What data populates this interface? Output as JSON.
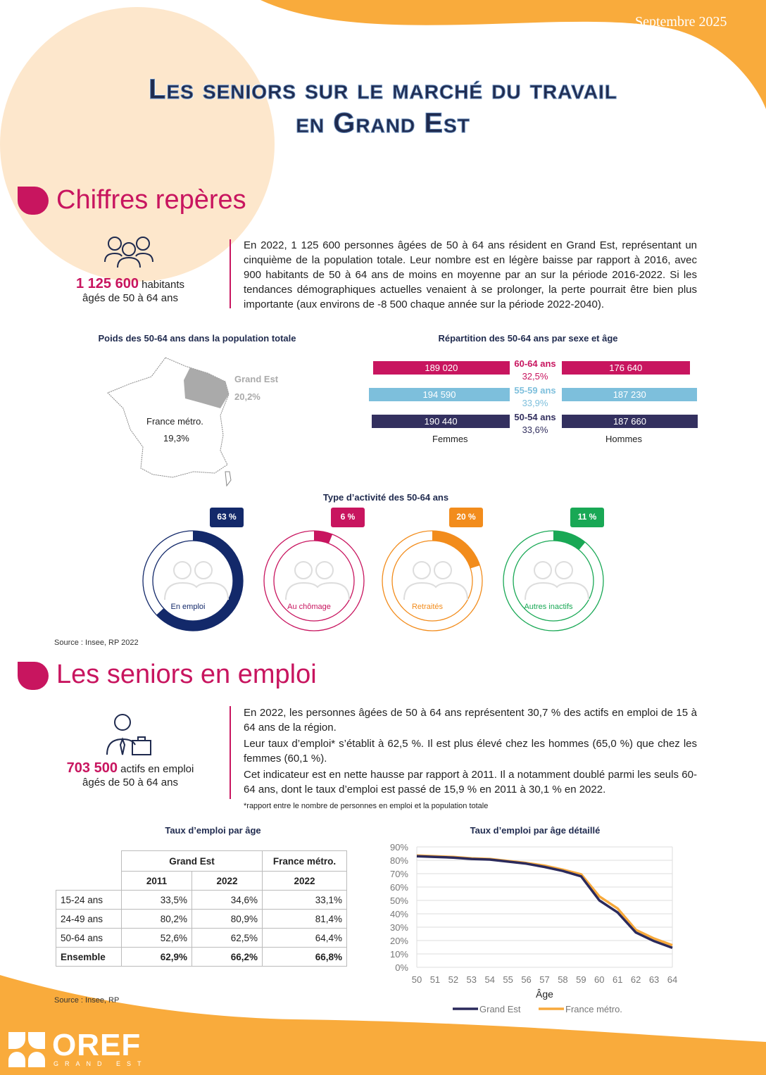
{
  "header": {
    "date": "Septembre 2025",
    "title_line1": "Les seniors sur le marché du travail",
    "title_line2": "en Grand Est"
  },
  "section1": {
    "title": "Chiffres repères",
    "kpi": {
      "value": "1 125 600",
      "unit": "habitants",
      "sub": "âgés de 50 à 64 ans"
    },
    "text": "En 2022, 1 125 600 personnes âgées de 50 à 64 ans résident en Grand Est, représentant un cinquième de la population totale. Leur nombre est en légère baisse par rapport à 2016, avec 900 habitants de 50 à 64 ans de moins en moyenne par an sur la période 2016-2022. Si les tendances démographiques actuelles venaient à se prolonger, la perte pourrait être bien plus importante (aux environs de -8 500 chaque année sur la période 2022-2040).",
    "map": {
      "title": "Poids des 50-64 ans dans la population totale",
      "region_label": "Grand Est",
      "region_value": "20,2%",
      "france_label": "France métro.",
      "france_value": "19,3%"
    },
    "pyramid": {
      "title": "Répartition des 50-64 ans par sexe et âge",
      "women_label": "Femmes",
      "men_label": "Hommes",
      "rows": [
        {
          "age": "60-64 ans",
          "share": "32,5%",
          "women": "189 020",
          "men": "176 640",
          "women_n": 189020,
          "men_n": 176640,
          "color": "#c8155f"
        },
        {
          "age": "55-59 ans",
          "share": "33,9%",
          "women": "194 590",
          "men": "187 230",
          "women_n": 194590,
          "men_n": 187230,
          "color": "#7dbfdc"
        },
        {
          "age": "50-54 ans",
          "share": "33,6%",
          "women": "190 440",
          "men": "187 660",
          "women_n": 190440,
          "men_n": 187660,
          "color": "#33305f"
        }
      ]
    },
    "activity": {
      "title": "Type d’activité des 50-64 ans",
      "items": [
        {
          "label": "En emploi",
          "pct_label": "63 %",
          "pct": 63,
          "color": "#13296a"
        },
        {
          "label": "Au chômage",
          "pct_label": "6 %",
          "pct": 6,
          "color": "#c8155f"
        },
        {
          "label": "Retraités",
          "pct_label": "20 %",
          "pct": 20,
          "color": "#f28c1c"
        },
        {
          "label": "Autres inactifs",
          "pct_label": "11 %",
          "pct": 11,
          "color": "#19a855"
        }
      ]
    },
    "source": "Source : Insee, RP 2022"
  },
  "section2": {
    "title": "Les seniors en emploi",
    "kpi": {
      "value": "703 500",
      "unit": "actifs en emploi",
      "sub": "âgés de 50 à 64 ans"
    },
    "paragraphs": [
      "En 2022, les personnes âgées de 50 à 64 ans représentent 30,7 % des actifs en emploi de 15 à 64 ans de la région.",
      "Leur taux d’emploi* s’établit à 62,5 %. Il est plus élevé chez les hommes (65,0 %) que chez les femmes (60,1 %).",
      "Cet indicateur est en nette hausse par rapport à 2011. Il a notamment doublé parmi les seuls 60-64 ans, dont le taux d’emploi est passé de 15,9 % en 2011 à 30,1 % en 2022."
    ],
    "footnote": "*rapport entre le nombre de personnes en emploi et la population totale",
    "table": {
      "title": "Taux d’emploi par âge",
      "group1": "Grand Est",
      "group2": "France métro.",
      "years": [
        "2011",
        "2022",
        "2022"
      ],
      "rows": [
        [
          "15-24 ans",
          "33,5%",
          "34,6%",
          "33,1%"
        ],
        [
          "24-49 ans",
          "80,2%",
          "80,9%",
          "81,4%"
        ],
        [
          "50-64 ans",
          "52,6%",
          "62,5%",
          "64,4%"
        ],
        [
          "Ensemble",
          "62,9%",
          "66,2%",
          "66,8%"
        ]
      ]
    },
    "source": "Source : Insee, RP"
  },
  "chart_data": {
    "type": "line",
    "title": "Taux d’emploi par âge détaillé",
    "xlabel": "Âge",
    "ylabel": "",
    "x": [
      50,
      51,
      52,
      53,
      54,
      55,
      56,
      57,
      58,
      59,
      60,
      61,
      62,
      63,
      64
    ],
    "ylim": [
      0,
      90
    ],
    "yticks": [
      "0%",
      "10%",
      "20%",
      "30%",
      "40%",
      "50%",
      "60%",
      "70%",
      "80%",
      "90%"
    ],
    "grid": true,
    "legend": "bottom",
    "series": [
      {
        "name": "Grand Est",
        "color": "#2b2a5c",
        "values": [
          83,
          82.5,
          82,
          81,
          80.5,
          79,
          77.5,
          75,
          72,
          68,
          50,
          41,
          26,
          19.5,
          14.5
        ]
      },
      {
        "name": "France métro.",
        "color": "#f7a93b",
        "values": [
          83.5,
          83,
          82.5,
          81.5,
          81,
          79.5,
          78,
          76,
          73,
          69.5,
          53,
          44,
          28,
          21.5,
          16.5
        ]
      }
    ]
  },
  "footer": {
    "logo": "OREF",
    "logo_sub": "GRAND EST"
  }
}
